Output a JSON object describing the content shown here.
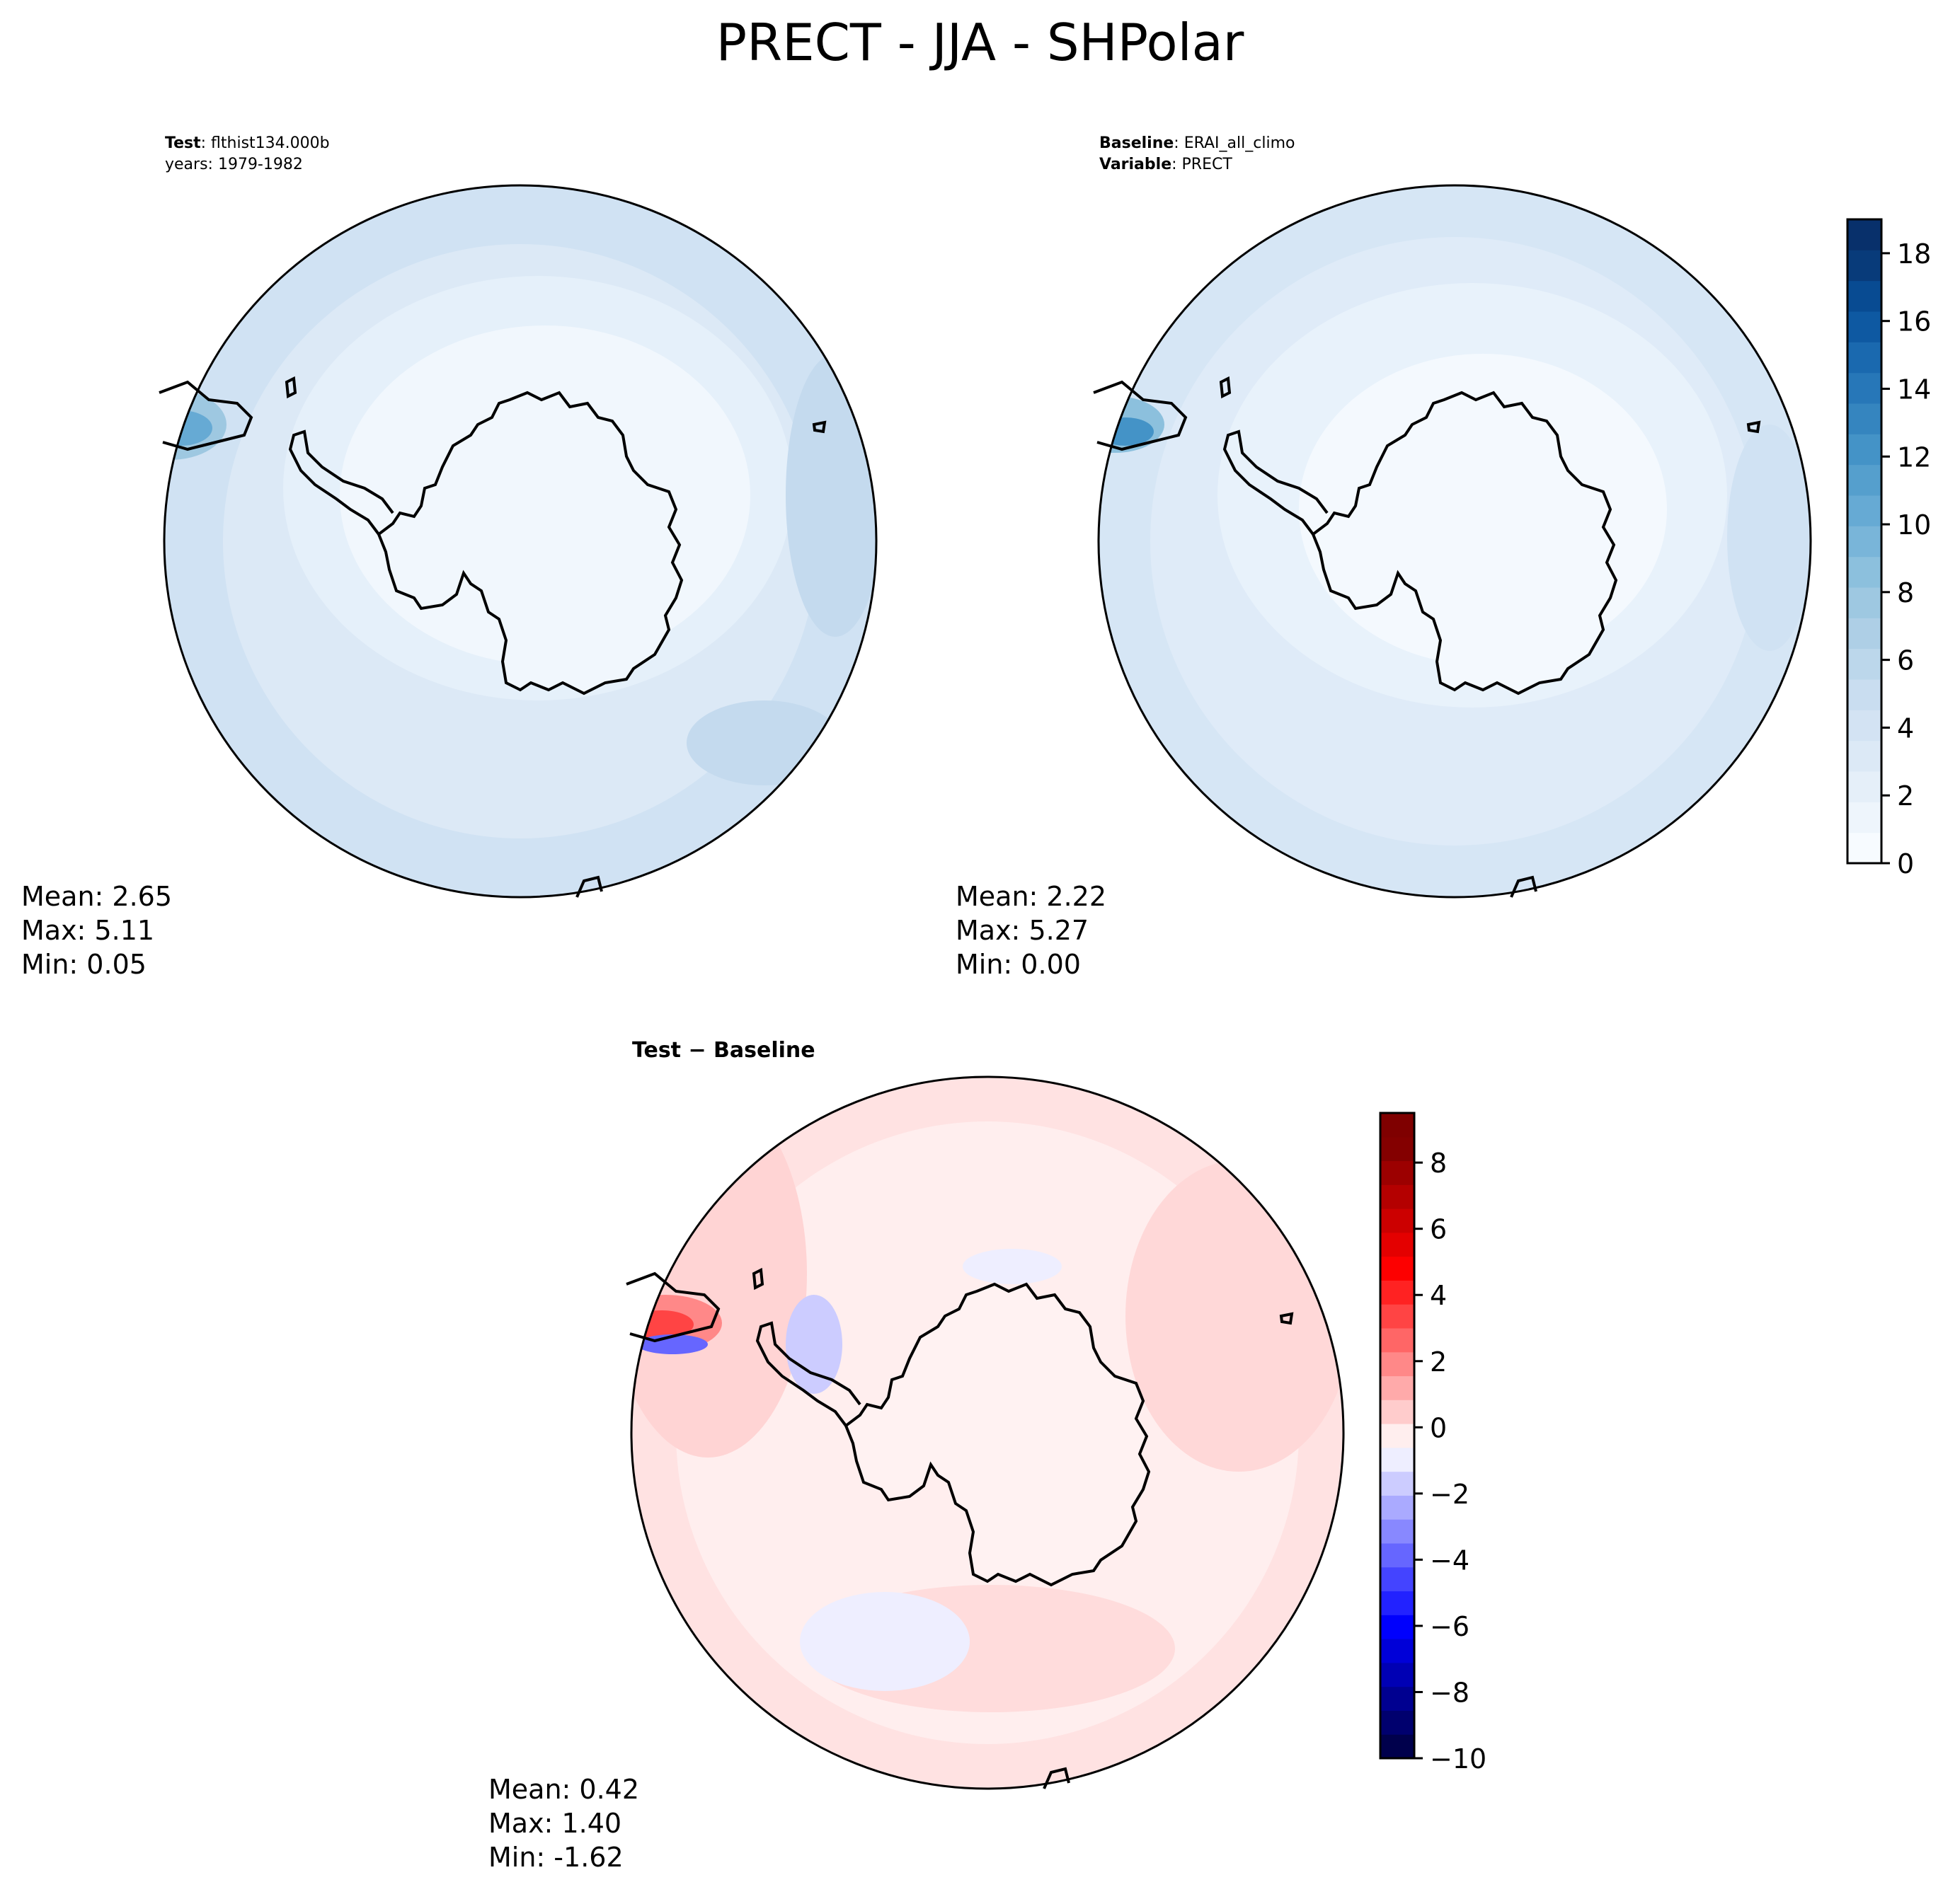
{
  "figure": {
    "title": "PRECT - JJA - SHPolar"
  },
  "panels": {
    "test": {
      "label": "Test",
      "name": "flthist134.000b",
      "years_label": "years: 1979-1982",
      "mean": "Mean:  2.65",
      "max": "Max:  5.11",
      "min": "Min:  0.05"
    },
    "baseline": {
      "label": "Baseline",
      "name": "ERAI_all_climo",
      "variable_label": "Variable",
      "variable": "PRECT",
      "mean": "Mean:  2.22",
      "max": "Max:  5.27",
      "min": "Min:  0.00"
    },
    "diff": {
      "label": "Test − Baseline",
      "mean": "Mean:  0.42",
      "max": "Max:  1.40",
      "min": "Min: -1.62"
    }
  },
  "chart_data": [
    {
      "type": "heatmap",
      "title": "Test : flthist134.000b",
      "projection": "south-polar-stereographic",
      "colormap": "Blues",
      "stats": {
        "mean": 2.65,
        "max": 5.11,
        "min": 0.05
      },
      "colors": [
        "#f1f7fd",
        "#e3eef9",
        "#d8e7f5",
        "#cfe1f2",
        "#c4daee"
      ]
    },
    {
      "type": "heatmap",
      "title": "Baseline : ERAI_all_climo",
      "projection": "south-polar-stereographic",
      "colormap": "Blues",
      "stats": {
        "mean": 2.22,
        "max": 5.27,
        "min": 0.0
      },
      "colorbar": {
        "range": [
          0,
          19
        ],
        "ticks": [
          0,
          2,
          4,
          6,
          8,
          10,
          12,
          14,
          16,
          18
        ],
        "colors": [
          "#f7fbff",
          "#eef5fc",
          "#e5eff9",
          "#dce9f6",
          "#d3e3f3",
          "#c9ddf0",
          "#bcd7eb",
          "#aecfe6",
          "#9ec8e1",
          "#8cc0dd",
          "#79b5d9",
          "#66aad4",
          "#559fcd",
          "#4493c7",
          "#3585bf",
          "#2777b8",
          "#1a69af",
          "#0e59a2",
          "#084b92",
          "#083b7a",
          "#08306b"
        ]
      }
    },
    {
      "type": "heatmap",
      "title": "Test − Baseline",
      "projection": "south-polar-stereographic",
      "colormap": "seismic",
      "stats": {
        "mean": 0.42,
        "max": 1.4,
        "min": -1.62
      },
      "colorbar": {
        "range": [
          -10,
          9.5
        ],
        "ticks": [
          -10,
          -8,
          -6,
          -4,
          -2,
          0,
          2,
          4,
          6,
          8
        ],
        "colors": [
          "#00004c",
          "#00006e",
          "#000090",
          "#0000b4",
          "#0000d8",
          "#0000fd",
          "#2222ff",
          "#4444ff",
          "#6666ff",
          "#8888ff",
          "#aaaaff",
          "#ccccff",
          "#eeeeff",
          "#ffeeee",
          "#ffcccc",
          "#ffaaaa",
          "#ff8888",
          "#ff6666",
          "#ff4444",
          "#ff2222",
          "#fd0000",
          "#e40000",
          "#cc0000",
          "#b40000",
          "#9c0000",
          "#840000",
          "#7f0000"
        ]
      }
    }
  ]
}
